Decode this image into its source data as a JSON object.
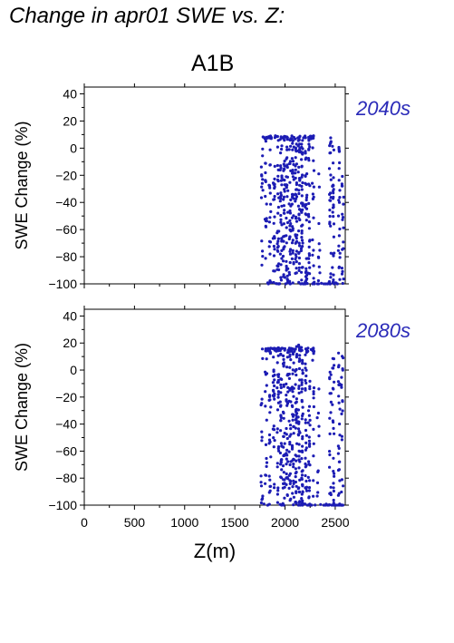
{
  "title": "Change in apr01 SWE vs. Z:",
  "scenario": "A1B",
  "colors": {
    "points": "#1c1cb4",
    "period_label": "#2a2ab8",
    "axis": "#000000"
  },
  "chart_data": [
    {
      "type": "scatter",
      "panel_label": "2040s",
      "xlabel": "",
      "ylabel": "SWE Change (%)",
      "xlim": [
        0,
        2600
      ],
      "ylim": [
        -100,
        45
      ],
      "y_ticks": [
        40,
        20,
        0,
        -20,
        -40,
        -60,
        -80,
        -100
      ],
      "x_ticks": [
        0,
        500,
        1000,
        1500,
        2000,
        2500
      ],
      "x_tick_labels_shown": false,
      "grid": false,
      "columns": [
        {
          "x": 1770,
          "n": 14,
          "y_range": [
            -98,
            8
          ]
        },
        {
          "x": 1810,
          "n": 16,
          "y_range": [
            -98,
            8
          ]
        },
        {
          "x": 1850,
          "n": 18,
          "y_range": [
            -100,
            9
          ]
        },
        {
          "x": 1890,
          "n": 22,
          "y_range": [
            -100,
            9
          ]
        },
        {
          "x": 1930,
          "n": 26,
          "y_range": [
            -100,
            9
          ]
        },
        {
          "x": 1960,
          "n": 30,
          "y_range": [
            -100,
            9
          ]
        },
        {
          "x": 1990,
          "n": 30,
          "y_range": [
            -100,
            9
          ]
        },
        {
          "x": 2020,
          "n": 32,
          "y_range": [
            -100,
            9
          ]
        },
        {
          "x": 2050,
          "n": 30,
          "y_range": [
            -100,
            10
          ]
        },
        {
          "x": 2080,
          "n": 34,
          "y_range": [
            -100,
            10
          ]
        },
        {
          "x": 2110,
          "n": 38,
          "y_range": [
            -100,
            10
          ]
        },
        {
          "x": 2140,
          "n": 36,
          "y_range": [
            -100,
            10
          ]
        },
        {
          "x": 2170,
          "n": 40,
          "y_range": [
            -100,
            9
          ]
        },
        {
          "x": 2210,
          "n": 30,
          "y_range": [
            -100,
            9
          ]
        },
        {
          "x": 2240,
          "n": 26,
          "y_range": [
            -100,
            8
          ]
        },
        {
          "x": 2280,
          "n": 14,
          "y_range": [
            -100,
            8
          ]
        },
        {
          "x": 2340,
          "n": 10,
          "y_range": [
            -100,
            8
          ]
        },
        {
          "x": 2450,
          "n": 24,
          "y_range": [
            -100,
            8
          ]
        },
        {
          "x": 2480,
          "n": 26,
          "y_range": [
            -100,
            8
          ]
        },
        {
          "x": 2540,
          "n": 22,
          "y_range": [
            -100,
            8
          ]
        },
        {
          "x": 2575,
          "n": 18,
          "y_range": [
            -100,
            8
          ]
        }
      ],
      "clusters": [
        {
          "y": 8,
          "x_range": [
            1770,
            2300
          ],
          "n": 48
        },
        {
          "y": -100,
          "x_range": [
            1800,
            2580
          ],
          "n": 40
        }
      ]
    },
    {
      "type": "scatter",
      "panel_label": "2080s",
      "xlabel": "Z(m)",
      "ylabel": "SWE Change (%)",
      "xlim": [
        0,
        2600
      ],
      "ylim": [
        -100,
        45
      ],
      "y_ticks": [
        40,
        20,
        0,
        -20,
        -40,
        -60,
        -80,
        -100
      ],
      "x_ticks": [
        0,
        500,
        1000,
        1500,
        2000,
        2500
      ],
      "x_tick_labels_shown": true,
      "grid": false,
      "columns": [
        {
          "x": 1770,
          "n": 14,
          "y_range": [
            -100,
            16
          ]
        },
        {
          "x": 1810,
          "n": 16,
          "y_range": [
            -100,
            16
          ]
        },
        {
          "x": 1850,
          "n": 20,
          "y_range": [
            -100,
            16
          ]
        },
        {
          "x": 1890,
          "n": 24,
          "y_range": [
            -100,
            16
          ]
        },
        {
          "x": 1930,
          "n": 28,
          "y_range": [
            -100,
            17
          ]
        },
        {
          "x": 1960,
          "n": 30,
          "y_range": [
            -100,
            17
          ]
        },
        {
          "x": 1990,
          "n": 30,
          "y_range": [
            -100,
            17
          ]
        },
        {
          "x": 2020,
          "n": 32,
          "y_range": [
            -100,
            17
          ]
        },
        {
          "x": 2050,
          "n": 32,
          "y_range": [
            -100,
            18
          ]
        },
        {
          "x": 2080,
          "n": 34,
          "y_range": [
            -100,
            19
          ]
        },
        {
          "x": 2110,
          "n": 38,
          "y_range": [
            -100,
            20
          ]
        },
        {
          "x": 2140,
          "n": 36,
          "y_range": [
            -100,
            20
          ]
        },
        {
          "x": 2170,
          "n": 40,
          "y_range": [
            -100,
            18
          ]
        },
        {
          "x": 2210,
          "n": 28,
          "y_range": [
            -100,
            16
          ]
        },
        {
          "x": 2240,
          "n": 24,
          "y_range": [
            -100,
            15
          ]
        },
        {
          "x": 2280,
          "n": 12,
          "y_range": [
            -100,
            14
          ]
        },
        {
          "x": 2330,
          "n": 10,
          "y_range": [
            -100,
            14
          ]
        },
        {
          "x": 2450,
          "n": 18,
          "y_range": [
            -100,
            14
          ]
        },
        {
          "x": 2480,
          "n": 22,
          "y_range": [
            -100,
            14
          ]
        },
        {
          "x": 2540,
          "n": 22,
          "y_range": [
            -100,
            14
          ]
        },
        {
          "x": 2570,
          "n": 16,
          "y_range": [
            -100,
            14
          ]
        }
      ],
      "clusters": [
        {
          "y": 15,
          "x_range": [
            1770,
            2300
          ],
          "n": 50
        },
        {
          "y": -100,
          "x_range": [
            1770,
            2580
          ],
          "n": 42
        }
      ]
    }
  ]
}
